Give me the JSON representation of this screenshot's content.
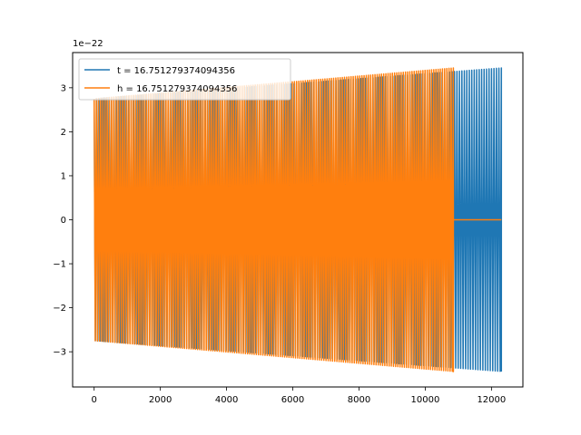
{
  "chart_data": {
    "type": "line",
    "title": "",
    "xlabel": "",
    "ylabel": "",
    "y_scale_label": "1e−22",
    "xlim": [
      -650,
      12950
    ],
    "ylim": [
      -3.8,
      3.8
    ],
    "x_ticks": [
      0,
      2000,
      4000,
      6000,
      8000,
      10000,
      12000
    ],
    "x_tick_labels": [
      "0",
      "2000",
      "4000",
      "6000",
      "8000",
      "10000",
      "12000"
    ],
    "y_ticks": [
      -3,
      -2,
      -1,
      0,
      1,
      2,
      3
    ],
    "y_tick_labels": [
      "−3",
      "−2",
      "−1",
      "0",
      "1",
      "2",
      "3"
    ],
    "grid": false,
    "legend_position": "upper-left",
    "series": [
      {
        "name": "t = 16.751279374094356",
        "color": "#1f77b4",
        "x_start": 0,
        "x_end": 12300,
        "amplitude_start": 2.75,
        "amplitude_end": 3.45,
        "num_cycles": 165,
        "tail_zero_after": null
      },
      {
        "name": "h = 16.751279374094356",
        "color": "#ff7f0e",
        "x_start": 0,
        "x_end": 10850,
        "amplitude_start": 2.75,
        "amplitude_end": 3.45,
        "num_cycles": 165,
        "tail_zero_after": 10850,
        "tail_zero_end": 12300
      }
    ]
  }
}
